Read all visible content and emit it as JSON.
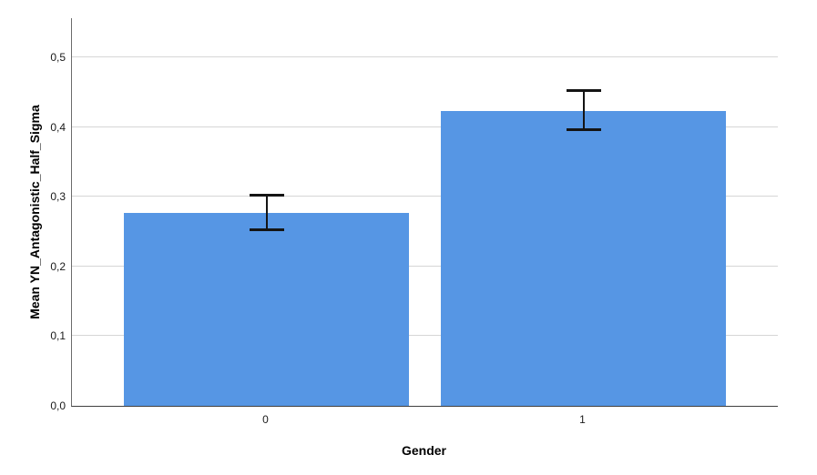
{
  "chart_data": {
    "type": "bar",
    "title": "",
    "xlabel": "Gender",
    "ylabel": "Mean YN_Antagonistic_Half_Sigma",
    "categories": [
      "0",
      "1"
    ],
    "values": [
      0.277,
      0.423
    ],
    "error_bars": [
      {
        "low": 0.252,
        "high": 0.302
      },
      {
        "low": 0.396,
        "high": 0.452
      }
    ],
    "ytick_labels": [
      "0,0",
      "0,1",
      "0,2",
      "0,3",
      "0,4",
      "0,5"
    ],
    "ytick_values": [
      0,
      0.1,
      0.2,
      0.3,
      0.4,
      0.5
    ],
    "ylim": [
      0,
      0.556
    ],
    "grid": true,
    "legend_position": "none",
    "decimal_separator": ",",
    "colors": {
      "bar": "#5696E4",
      "grid": "#D6D6D6",
      "axis": "#555555",
      "error": "#141414",
      "text": "#1A1A1A"
    }
  }
}
